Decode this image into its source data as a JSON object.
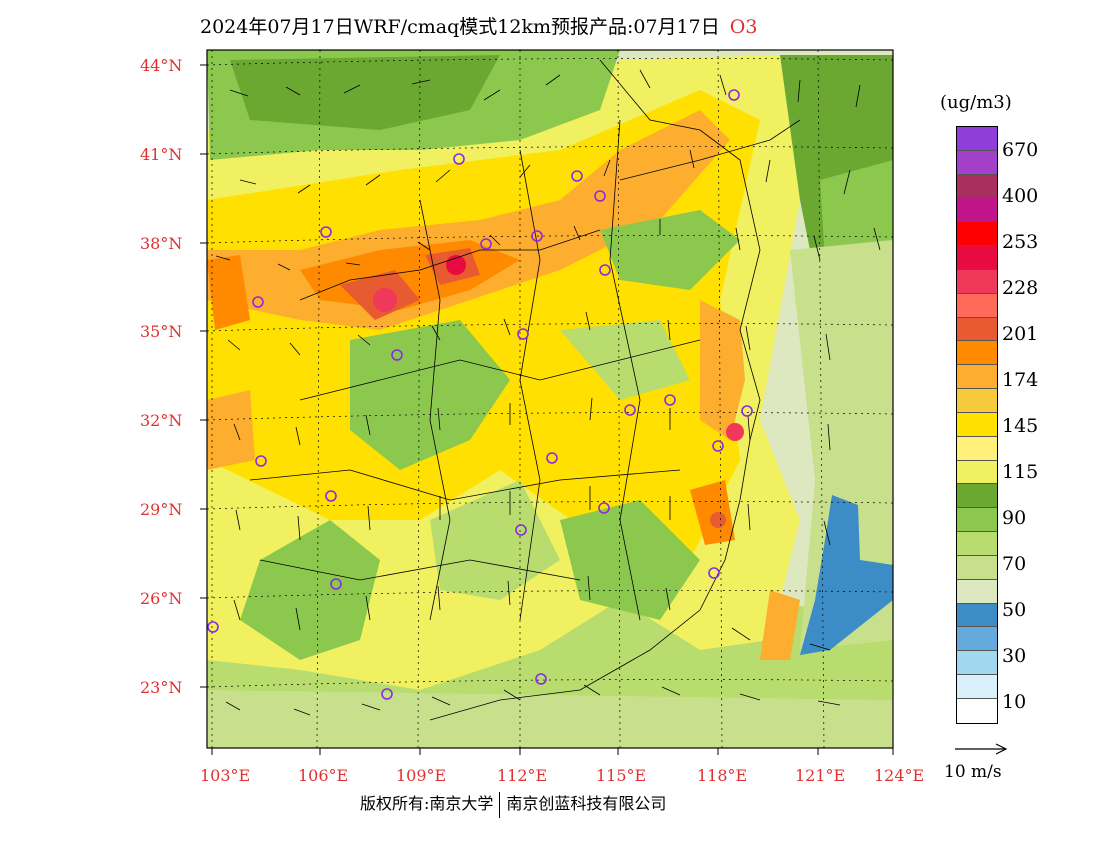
{
  "title": {
    "text": "2024年07月17日WRF/cmaq模式12km预报产品:07月17日",
    "species": "O3"
  },
  "axes": {
    "lat_labels": [
      "44°N",
      "41°N",
      "38°N",
      "35°N",
      "32°N",
      "29°N",
      "26°N",
      "23°N"
    ],
    "lon_labels": [
      "103°E",
      "106°E",
      "109°E",
      "112°E",
      "115°E",
      "118°E",
      "121°E",
      "124°E"
    ]
  },
  "legend": {
    "units": "(ug/m3)",
    "labels": [
      "670",
      "400",
      "253",
      "228",
      "201",
      "174",
      "145",
      "115",
      "90",
      "70",
      "50",
      "30",
      "10"
    ],
    "colors": [
      "#8f3fd8",
      "#a33fc8",
      "#a9305e",
      "#c0148a",
      "#ff0000",
      "#e80a40",
      "#f0385a",
      "#ff6a5a",
      "#e85a30",
      "#ff8a00",
      "#fdae2f",
      "#f7c93c",
      "#ffe000",
      "#fff07a",
      "#f0f060",
      "#6aa832",
      "#8cc84e",
      "#b8dc6e",
      "#c8e08c",
      "#dde8c0",
      "#3c8cc8",
      "#64aadc",
      "#a0d8f0",
      "#d8f0fa",
      "#ffffff"
    ]
  },
  "wind_reference": "10 m/s",
  "footer": {
    "left": "版权所有:南京大学",
    "right": "南京创蓝科技有限公司"
  },
  "colors": {
    "axis_label": "#e03030",
    "station_marker": "#8a2be2"
  }
}
